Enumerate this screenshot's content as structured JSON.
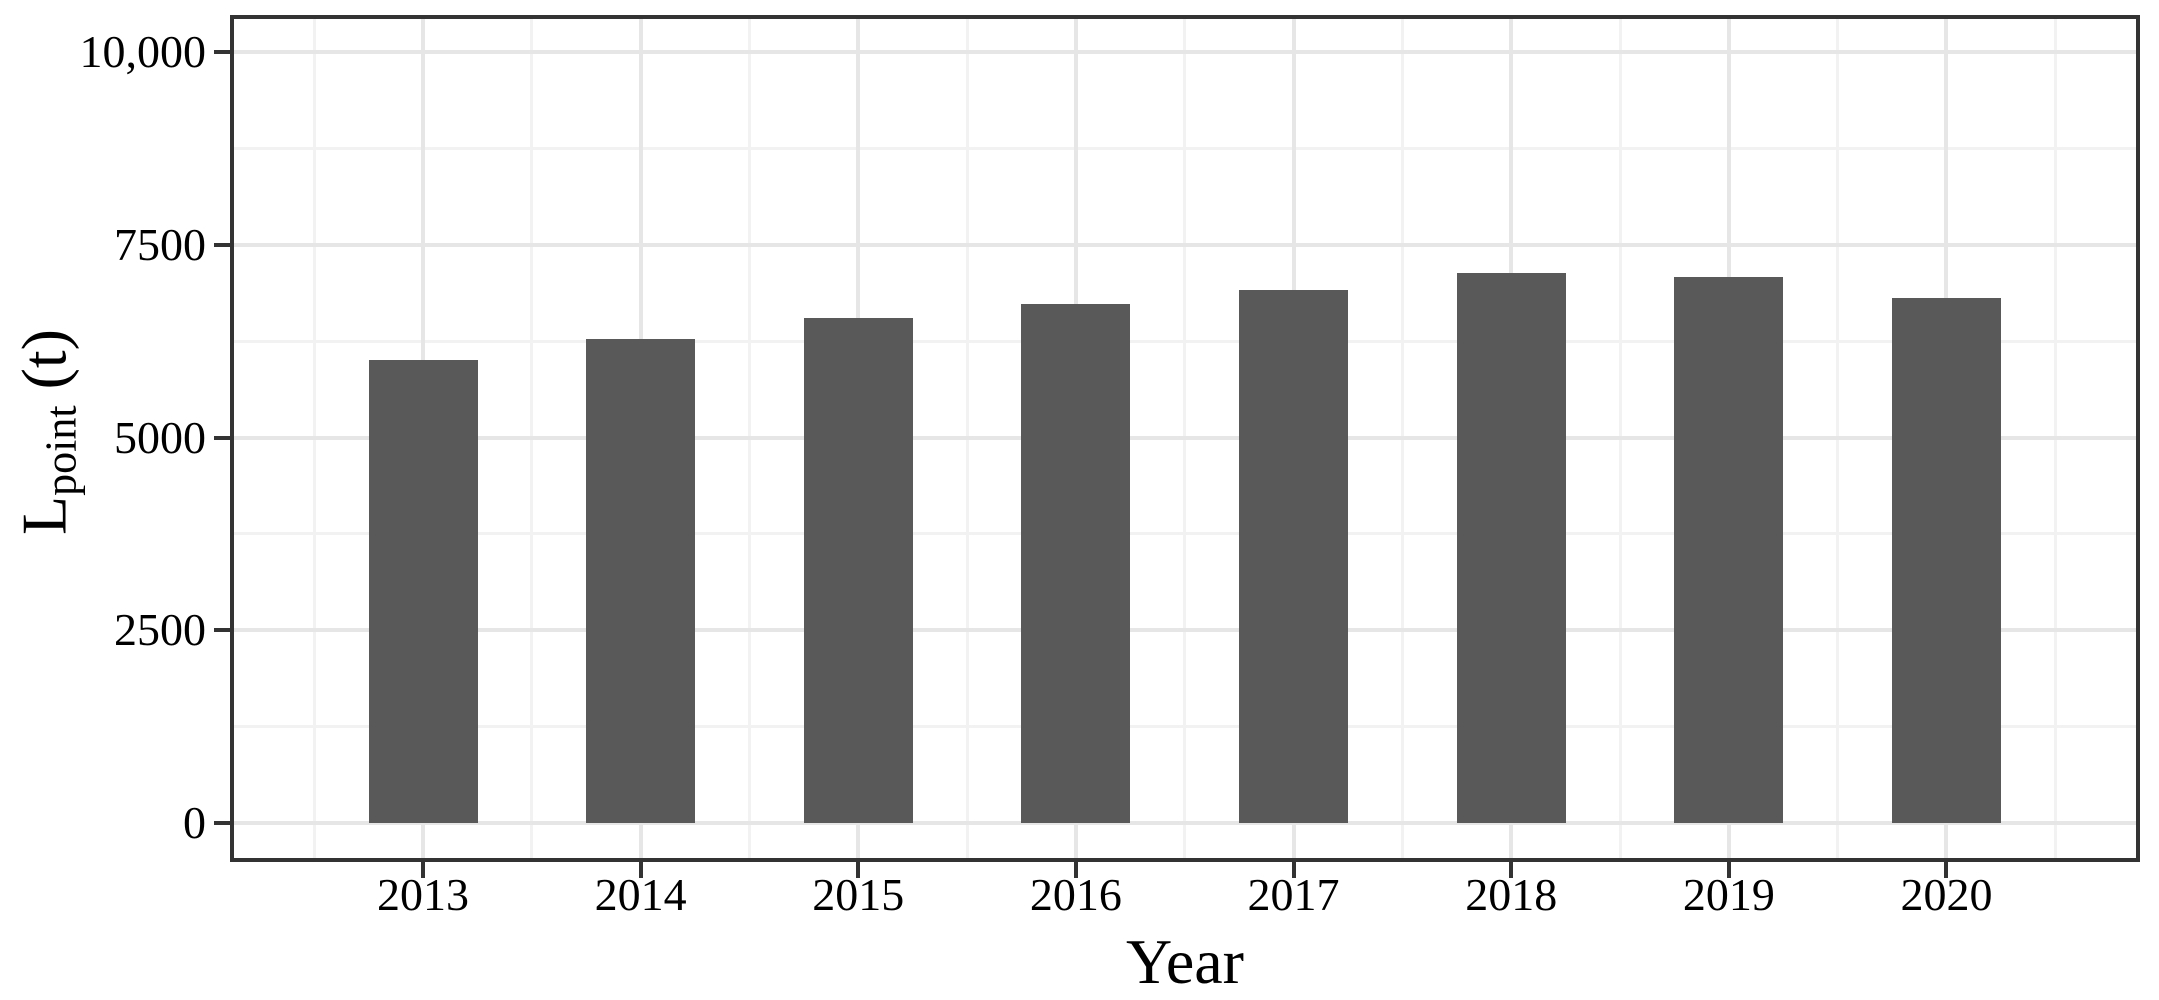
{
  "chart_data": {
    "type": "bar",
    "title": "",
    "xlabel": "Year",
    "ylabel": "L_point (t)",
    "ylabel_parts": {
      "base": "L",
      "subscript": "point",
      "suffix": " (t)"
    },
    "categories": [
      "2013",
      "2014",
      "2015",
      "2016",
      "2017",
      "2018",
      "2019",
      "2020"
    ],
    "values": [
      6000,
      6280,
      6550,
      6730,
      6910,
      7130,
      7080,
      6810
    ],
    "ylim": [
      0,
      10000
    ],
    "y_major_ticks": [
      {
        "value": 0,
        "label": "0"
      },
      {
        "value": 2500,
        "label": "2500"
      },
      {
        "value": 5000,
        "label": "5000"
      },
      {
        "value": 7500,
        "label": "7500"
      },
      {
        "value": 10000,
        "label": "10,000"
      }
    ],
    "y_minor_ticks": [
      1250,
      3750,
      6250,
      8750
    ],
    "grid": {
      "major": true,
      "minor": true,
      "vertical": true
    },
    "legend": "none",
    "colors": {
      "bar": "#595959",
      "panel_border": "#333333",
      "tick": "#333333",
      "grid_major": "#e6e6e6",
      "grid_minor": "#f2f2f2",
      "text": "#000000",
      "background": "#ffffff"
    }
  }
}
